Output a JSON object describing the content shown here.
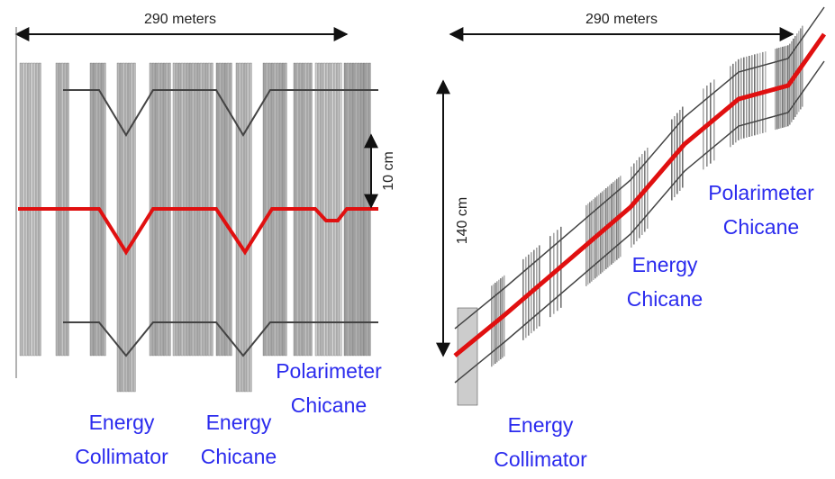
{
  "left": {
    "width_label": "290 meters",
    "height_label": "10 cm",
    "labels": [
      [
        "Energy",
        "Collimator"
      ],
      [
        "Energy",
        "Chicane"
      ],
      [
        "Polarimeter",
        "Chicane"
      ]
    ]
  },
  "right": {
    "width_label": "290 meters",
    "height_label": "140 cm",
    "labels": [
      [
        "Polarimeter",
        "Chicane"
      ],
      [
        "Energy",
        "Chicane"
      ],
      [
        "Energy",
        "Collimator"
      ]
    ]
  }
}
